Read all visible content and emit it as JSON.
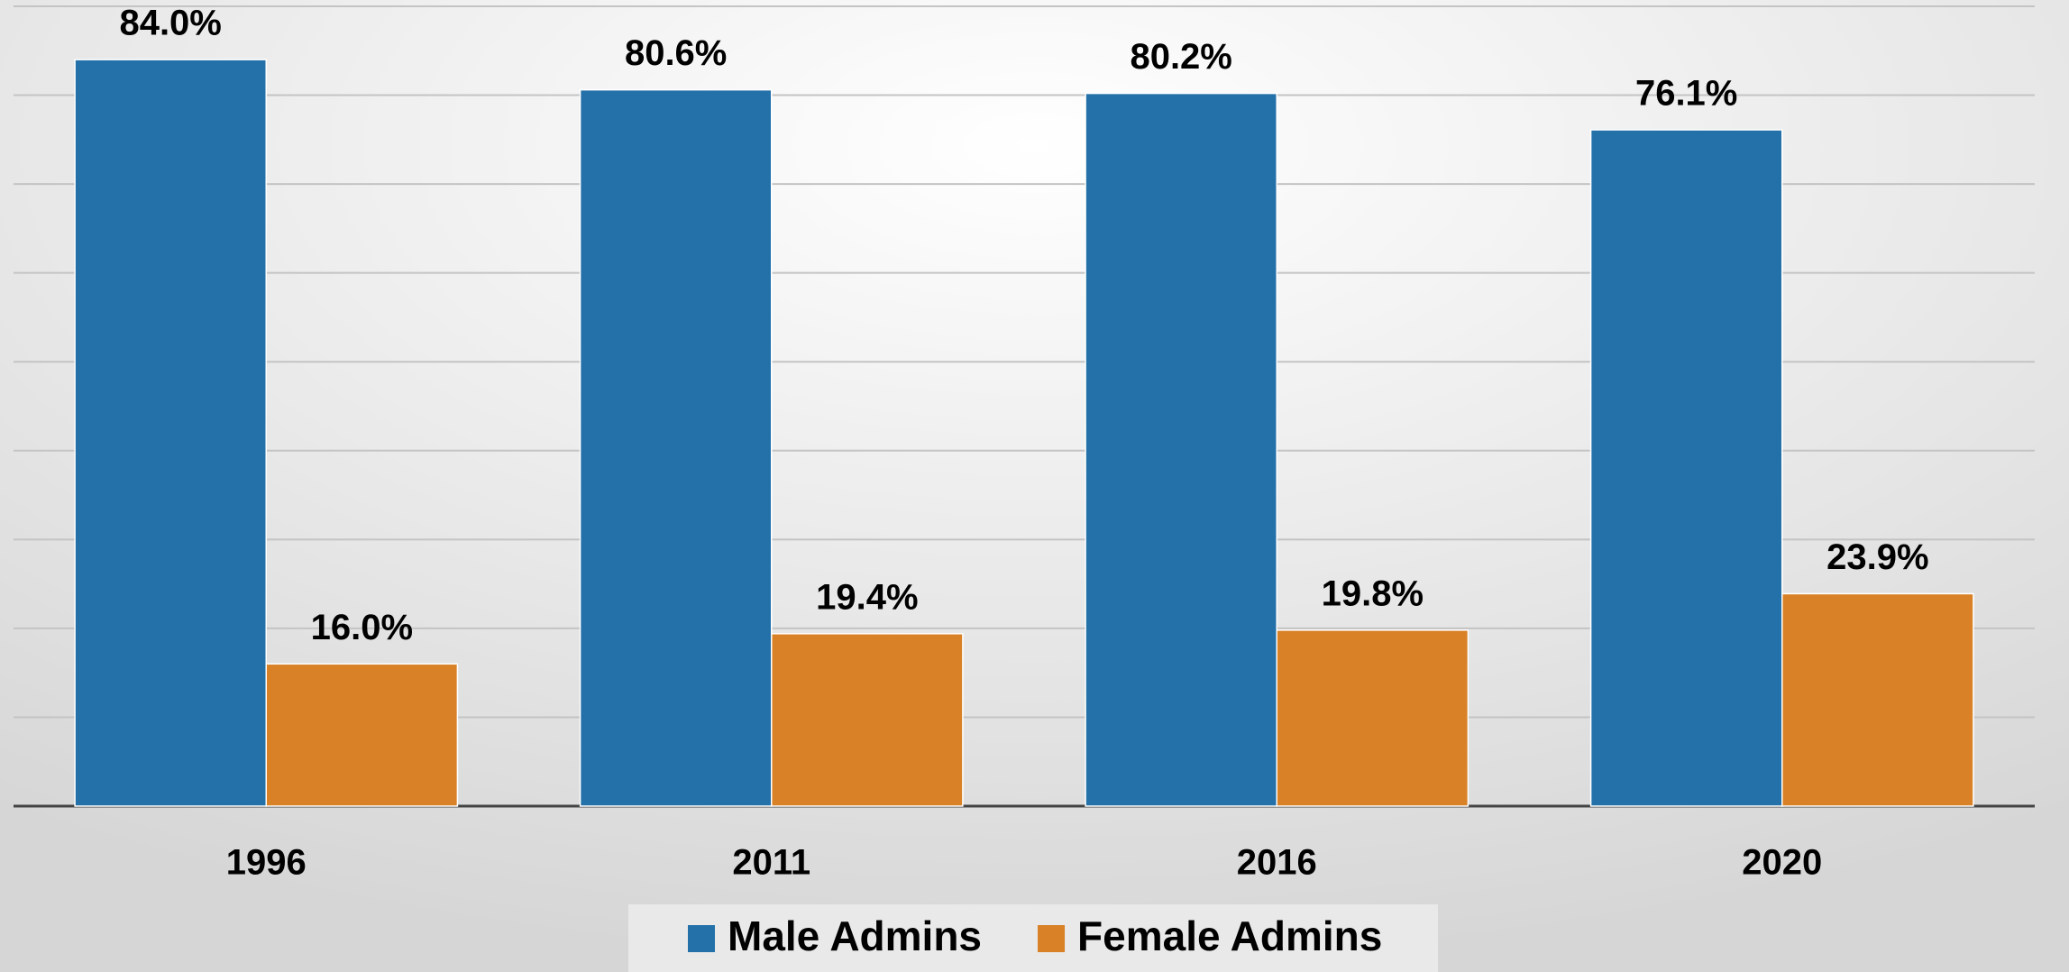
{
  "chart_data": {
    "type": "bar",
    "categories": [
      "1996",
      "2011",
      "2016",
      "2020"
    ],
    "series": [
      {
        "name": "Male Admins",
        "color": "#2471a9",
        "values": [
          84.0,
          80.6,
          80.2,
          76.1
        ],
        "value_labels": [
          "84.0%",
          "80.6%",
          "80.2%",
          "76.1%"
        ]
      },
      {
        "name": "Female Admins",
        "color": "#d88126",
        "values": [
          16.0,
          19.4,
          19.8,
          23.9
        ],
        "value_labels": [
          "16.0%",
          "19.4%",
          "19.8%",
          "23.9%"
        ]
      }
    ],
    "ylim": [
      0,
      90
    ],
    "yticks": [
      0,
      10,
      20,
      30,
      40,
      50,
      60,
      70,
      80,
      90
    ],
    "grid": true,
    "legend": "bottom"
  }
}
